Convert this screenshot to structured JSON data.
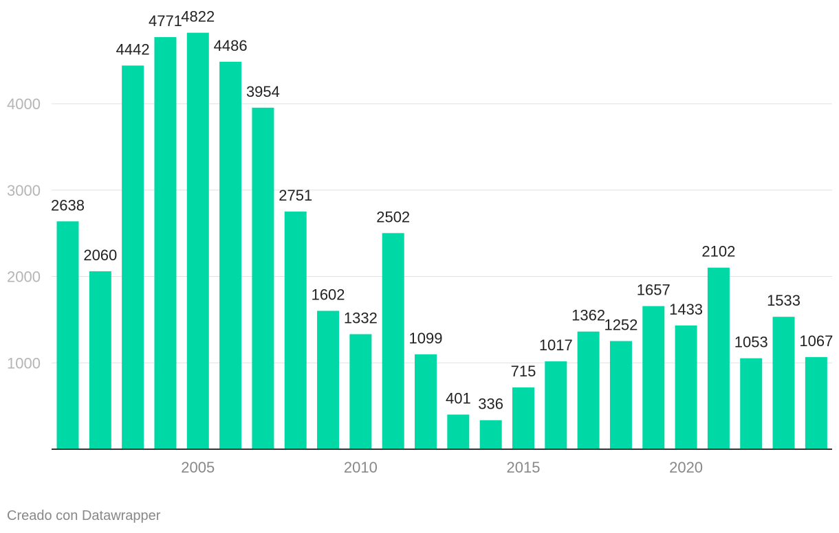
{
  "chart_data": {
    "type": "bar",
    "title": "",
    "xlabel": "",
    "ylabel": "",
    "categories": [
      2001,
      2002,
      2003,
      2004,
      2005,
      2006,
      2007,
      2008,
      2009,
      2010,
      2011,
      2012,
      2013,
      2014,
      2015,
      2016,
      2017,
      2018,
      2019,
      2020,
      2021,
      2022,
      2023,
      2024
    ],
    "values": [
      2638,
      2060,
      4442,
      4771,
      4822,
      4486,
      3954,
      2751,
      1602,
      1332,
      2502,
      1099,
      401,
      336,
      715,
      1017,
      1362,
      1252,
      1657,
      1433,
      2102,
      1053,
      1533,
      1067
    ],
    "ylim": [
      0,
      4822
    ],
    "y_ticks": [
      1000,
      2000,
      3000,
      4000
    ],
    "x_tick_labels": [
      2005,
      2010,
      2015,
      2020
    ],
    "grid": true,
    "bar_color": "#00d9a6",
    "data_labels": true
  },
  "footer": {
    "credit": "Creado con Datawrapper"
  }
}
